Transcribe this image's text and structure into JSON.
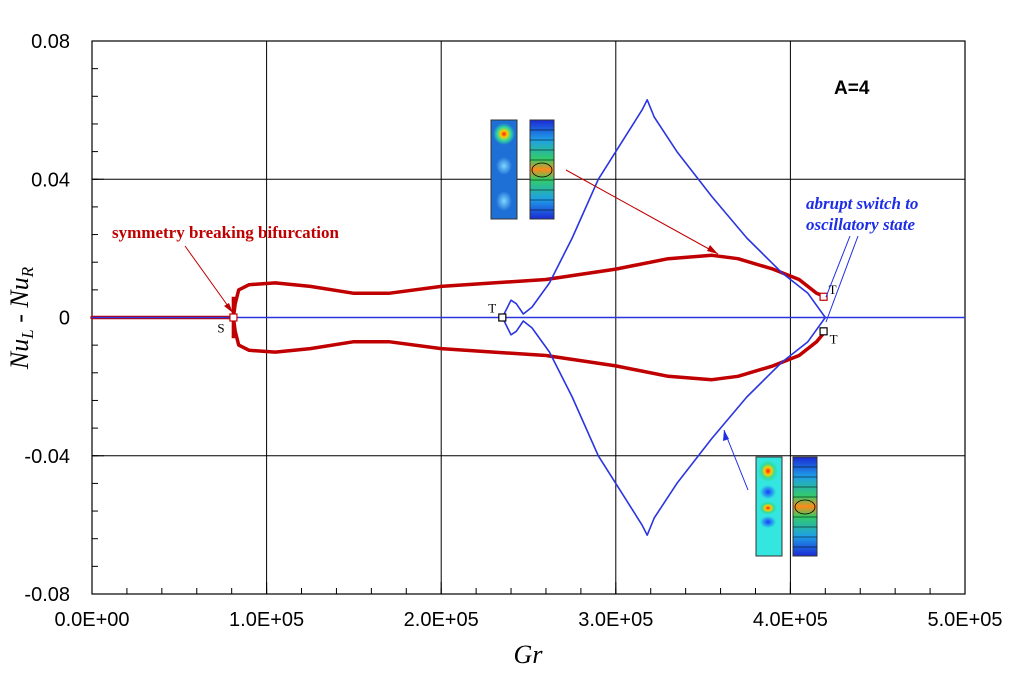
{
  "chart_data": {
    "type": "line",
    "panel_label": "A=4",
    "xlabel": "Gr",
    "ylabel": "Nu L - Nu R",
    "xlim": [
      0,
      500000
    ],
    "ylim": [
      -0.08,
      0.08
    ],
    "xticks": [
      "0.0E+00",
      "1.0E+05",
      "2.0E+05",
      "3.0E+05",
      "4.0E+05",
      "5.0E+05"
    ],
    "yticks": [
      "0.08",
      "0.04",
      "0",
      "-0.04",
      "-0.08"
    ],
    "grid": true,
    "colors": {
      "red": "#c00000",
      "blue": "#2a35e0"
    },
    "series": [
      {
        "color": "#c00000",
        "style": "thick",
        "points": [
          [
            0,
            0
          ],
          [
            81000,
            0
          ]
        ]
      },
      {
        "color": "#c00000",
        "style": "thick",
        "points": [
          [
            81000,
            0
          ],
          [
            82000,
            0.004
          ],
          [
            84000,
            0.008
          ],
          [
            90000,
            0.0095
          ],
          [
            105000,
            0.01
          ],
          [
            125000,
            0.009
          ],
          [
            150000,
            0.007
          ],
          [
            170000,
            0.007
          ],
          [
            200000,
            0.009
          ],
          [
            230000,
            0.01
          ],
          [
            260000,
            0.011
          ],
          [
            300000,
            0.014
          ],
          [
            330000,
            0.017
          ],
          [
            355000,
            0.018
          ],
          [
            370000,
            0.017
          ],
          [
            390000,
            0.014
          ],
          [
            405000,
            0.011
          ],
          [
            415000,
            0.007
          ],
          [
            420000,
            0.006
          ]
        ]
      },
      {
        "color": "#c00000",
        "style": "thick",
        "points": [
          [
            81000,
            0
          ],
          [
            82000,
            -0.004
          ],
          [
            84000,
            -0.008
          ],
          [
            90000,
            -0.0095
          ],
          [
            105000,
            -0.01
          ],
          [
            125000,
            -0.009
          ],
          [
            150000,
            -0.007
          ],
          [
            170000,
            -0.007
          ],
          [
            200000,
            -0.009
          ],
          [
            230000,
            -0.01
          ],
          [
            260000,
            -0.011
          ],
          [
            300000,
            -0.014
          ],
          [
            330000,
            -0.017
          ],
          [
            355000,
            -0.018
          ],
          [
            370000,
            -0.017
          ],
          [
            390000,
            -0.014
          ],
          [
            405000,
            -0.011
          ],
          [
            415000,
            -0.007
          ],
          [
            420000,
            -0.004
          ]
        ]
      },
      {
        "color": "#2a35e0",
        "style": "thin",
        "points": [
          [
            0,
            0
          ],
          [
            500000,
            0
          ]
        ]
      },
      {
        "color": "#2a35e0",
        "style": "thin",
        "points": [
          [
            235000,
            0
          ],
          [
            237000,
            0.002
          ],
          [
            240000,
            0.005
          ],
          [
            243000,
            0.004
          ],
          [
            247000,
            0.001
          ],
          [
            252000,
            0.003
          ],
          [
            262000,
            0.01
          ],
          [
            275000,
            0.023
          ],
          [
            290000,
            0.04
          ],
          [
            305000,
            0.052
          ],
          [
            315000,
            0.06
          ],
          [
            318000,
            0.063
          ],
          [
            322000,
            0.058
          ],
          [
            335000,
            0.048
          ],
          [
            355000,
            0.035
          ],
          [
            375000,
            0.023
          ],
          [
            395000,
            0.013
          ],
          [
            410000,
            0.007
          ],
          [
            420000,
            0
          ]
        ]
      },
      {
        "color": "#2a35e0",
        "style": "thin",
        "points": [
          [
            235000,
            0
          ],
          [
            237000,
            -0.002
          ],
          [
            240000,
            -0.005
          ],
          [
            243000,
            -0.004
          ],
          [
            247000,
            -0.001
          ],
          [
            252000,
            -0.003
          ],
          [
            262000,
            -0.01
          ],
          [
            275000,
            -0.023
          ],
          [
            290000,
            -0.04
          ],
          [
            305000,
            -0.052
          ],
          [
            315000,
            -0.06
          ],
          [
            318000,
            -0.063
          ],
          [
            322000,
            -0.058
          ],
          [
            335000,
            -0.048
          ],
          [
            355000,
            -0.035
          ],
          [
            375000,
            -0.023
          ],
          [
            395000,
            -0.013
          ],
          [
            410000,
            -0.007
          ],
          [
            420000,
            0
          ]
        ]
      }
    ],
    "markers": [
      {
        "label": "S",
        "x": 81000,
        "y": 0,
        "color": "#c00000"
      },
      {
        "label": "T",
        "x": 235000,
        "y": 0,
        "color": "#000000"
      },
      {
        "label": "T",
        "x": 419000,
        "y": 0.006,
        "color": "#c00000"
      },
      {
        "label": "T",
        "x": 419000,
        "y": -0.004,
        "color": "#000000"
      }
    ],
    "annotations": [
      {
        "text": "symmetry breaking bifurcation",
        "color": "#c00000"
      },
      {
        "lines": [
          "abrupt switch to",
          "oscillatory state"
        ],
        "color": "#1e2ee6"
      }
    ]
  }
}
